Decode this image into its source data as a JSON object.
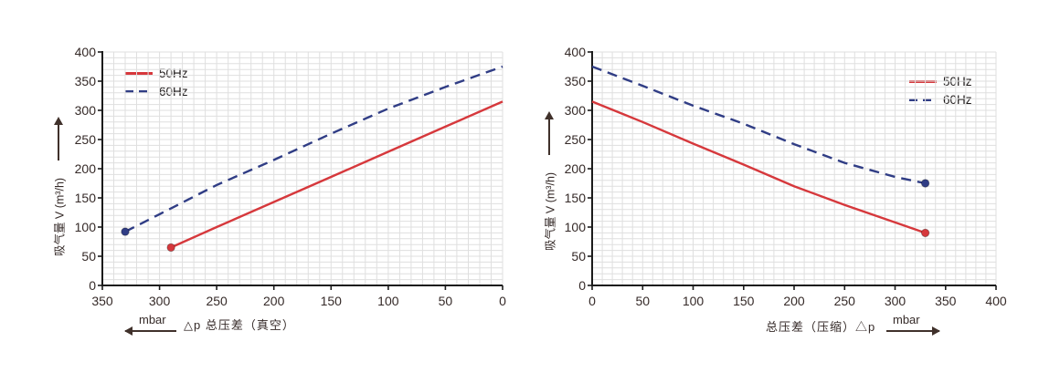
{
  "colors": {
    "series_50hz": "#d6383c",
    "series_60hz": "#303d85",
    "grid": "#dfdfdf",
    "axis": "#1b1b1b",
    "text": "#352a28",
    "arrow": "#40312b",
    "background": "#ffffff"
  },
  "chart_data": [
    {
      "type": "line",
      "id": "vacuum",
      "x_axis": {
        "label": "△p  总压差（真空）",
        "unit": "mbar",
        "unit_arrow": "left",
        "min": 0,
        "max": 350,
        "reversed": true,
        "ticks": [
          350,
          300,
          250,
          200,
          150,
          100,
          50,
          0
        ],
        "minor_grid_step": 10
      },
      "y_axis": {
        "label": "吸气量 V (m³/h)",
        "arrow": "up",
        "min": 0,
        "max": 400,
        "ticks": [
          400,
          350,
          300,
          250,
          200,
          150,
          100,
          50,
          0
        ],
        "minor_grid_step": 10
      },
      "legend_position": "top-left",
      "series": [
        {
          "name": "50Hz",
          "color": "#d6383c",
          "style": "solid",
          "marker": [
            290,
            65
          ],
          "points": [
            [
              290,
              65
            ],
            [
              250,
              100
            ],
            [
              200,
              143
            ],
            [
              150,
              186
            ],
            [
              100,
              229
            ],
            [
              50,
              272
            ],
            [
              0,
              315
            ]
          ]
        },
        {
          "name": "60Hz",
          "color": "#303d85",
          "style": "dashed",
          "marker": [
            330,
            92
          ],
          "points": [
            [
              330,
              92
            ],
            [
              300,
              122
            ],
            [
              250,
              172
            ],
            [
              200,
              215
            ],
            [
              150,
              260
            ],
            [
              100,
              303
            ],
            [
              50,
              340
            ],
            [
              0,
              375
            ]
          ]
        }
      ]
    },
    {
      "type": "line",
      "id": "compression",
      "x_axis": {
        "label": "总压差（压缩）△p",
        "unit": "mbar",
        "unit_arrow": "right",
        "min": 0,
        "max": 400,
        "reversed": false,
        "ticks": [
          0,
          50,
          100,
          150,
          200,
          250,
          300,
          350,
          400
        ],
        "minor_grid_step": 10
      },
      "y_axis": {
        "label": "吸气量 V (m³/h)",
        "arrow": "up",
        "min": 0,
        "max": 400,
        "ticks": [
          400,
          350,
          300,
          250,
          200,
          150,
          100,
          50,
          0
        ],
        "minor_grid_step": 10
      },
      "legend_position": "top-right",
      "series": [
        {
          "name": "50Hz",
          "color": "#d6383c",
          "style": "solid",
          "marker": [
            330,
            90
          ],
          "points": [
            [
              0,
              315
            ],
            [
              50,
              280
            ],
            [
              100,
              243
            ],
            [
              150,
              207
            ],
            [
              200,
              170
            ],
            [
              250,
              138
            ],
            [
              300,
              108
            ],
            [
              330,
              90
            ]
          ]
        },
        {
          "name": "60Hz",
          "color": "#303d85",
          "style": "dashed",
          "marker": [
            330,
            175
          ],
          "points": [
            [
              0,
              375
            ],
            [
              50,
              342
            ],
            [
              100,
              308
            ],
            [
              150,
              277
            ],
            [
              200,
              242
            ],
            [
              250,
              210
            ],
            [
              300,
              186
            ],
            [
              330,
              175
            ]
          ]
        }
      ]
    }
  ]
}
